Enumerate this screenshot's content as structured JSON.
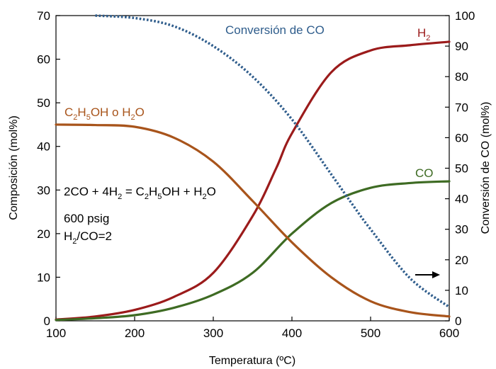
{
  "chart_data": {
    "type": "line",
    "xlabel": "Temperatura (ºC)",
    "ylabel_left": "Composición (mol%)",
    "ylabel_right": "Conversión de CO (mol%)",
    "xlim": [
      100,
      600
    ],
    "ylim_left": [
      0,
      70
    ],
    "ylim_right": [
      0,
      100
    ],
    "x_ticks": [
      "100",
      "200",
      "300",
      "400",
      "500",
      "600"
    ],
    "y_ticks_left": [
      "0",
      "10",
      "20",
      "30",
      "40",
      "50",
      "60",
      "70"
    ],
    "y_ticks_right": [
      "0",
      "10",
      "20",
      "30",
      "40",
      "50",
      "60",
      "70",
      "80",
      "90",
      "100"
    ],
    "grid": false,
    "colors": {
      "h2": "#9b1b1b",
      "co": "#3e6b23",
      "ethanol": "#a8541b",
      "conversion": "#2f5d8c"
    },
    "series": [
      {
        "name": "H2",
        "axis": "left",
        "style": "solid",
        "x": [
          100,
          150,
          200,
          250,
          300,
          350,
          380,
          400,
          450,
          500,
          550,
          600
        ],
        "y": [
          0.3,
          1.0,
          2.5,
          5.5,
          11,
          24,
          35,
          43,
          57,
          62,
          63.2,
          64
        ]
      },
      {
        "name": "CO",
        "axis": "left",
        "style": "solid",
        "x": [
          100,
          150,
          200,
          250,
          300,
          350,
          400,
          450,
          500,
          550,
          600
        ],
        "y": [
          0.2,
          0.6,
          1.3,
          3.0,
          6.0,
          11,
          20,
          27,
          30.5,
          31.6,
          32
        ]
      },
      {
        "name": "C2H5OH o H2O",
        "axis": "left",
        "style": "solid",
        "x": [
          100,
          150,
          200,
          250,
          300,
          350,
          400,
          450,
          500,
          550,
          600
        ],
        "y": [
          45,
          44.9,
          44.5,
          42,
          36.5,
          27.5,
          18,
          10,
          4.5,
          2,
          1
        ]
      },
      {
        "name": "Conversión de CO",
        "axis": "right",
        "style": "dotted",
        "x": [
          150,
          200,
          250,
          300,
          350,
          400,
          450,
          480,
          500,
          550,
          600
        ],
        "y": [
          100,
          99.2,
          96.5,
          90,
          80,
          66,
          48,
          37,
          30,
          14,
          4.5
        ]
      }
    ],
    "annotations": {
      "conversion_label": "Conversión de CO",
      "h2_label": {
        "base": "H",
        "sub": "2"
      },
      "co_label": "CO",
      "ethanol_label": [
        "C",
        "2",
        "H",
        "5",
        "OH o H",
        "2",
        "O"
      ],
      "equation": [
        "2CO + 4H",
        "2",
        " = C",
        "2",
        "H",
        "5",
        "OH + H",
        "2",
        "O"
      ],
      "pressure": "600 psig",
      "ratio": [
        "H",
        "2",
        "/CO=2"
      ]
    }
  }
}
